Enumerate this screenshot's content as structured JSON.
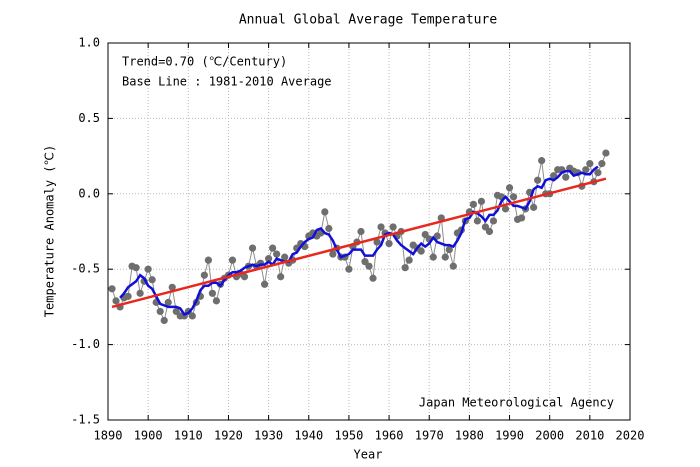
{
  "chart_data": {
    "type": "line",
    "title": "Annual Global Average Temperature",
    "x_label": "Year",
    "y_label": "Temperature Anomaly (℃)",
    "annotations": [
      "Trend=0.70 (℃/Century)",
      "Base Line : 1981-2010 Average",
      "Japan Meteorological Agency"
    ],
    "xlim": [
      1890,
      2020
    ],
    "ylim": [
      -1.5,
      1.0
    ],
    "xticks": [
      1890,
      1900,
      1910,
      1920,
      1930,
      1940,
      1950,
      1960,
      1970,
      1980,
      1990,
      2000,
      2010,
      2020
    ],
    "yticks": [
      {
        "value": 1,
        "label": "1.0"
      },
      0.5,
      {
        "value": 0,
        "label": "0.0"
      },
      -0.5,
      {
        "value": -1,
        "label": "-1.0"
      },
      -1.5
    ],
    "grid": true,
    "x": [
      1891,
      1892,
      1893,
      1894,
      1895,
      1896,
      1897,
      1898,
      1899,
      1900,
      1901,
      1902,
      1903,
      1904,
      1905,
      1906,
      1907,
      1908,
      1909,
      1910,
      1911,
      1912,
      1913,
      1914,
      1915,
      1916,
      1917,
      1918,
      1919,
      1920,
      1921,
      1922,
      1923,
      1924,
      1925,
      1926,
      1927,
      1928,
      1929,
      1930,
      1931,
      1932,
      1933,
      1934,
      1935,
      1936,
      1937,
      1938,
      1939,
      1940,
      1941,
      1942,
      1943,
      1944,
      1945,
      1946,
      1947,
      1948,
      1949,
      1950,
      1951,
      1952,
      1953,
      1954,
      1955,
      1956,
      1957,
      1958,
      1959,
      1960,
      1961,
      1962,
      1963,
      1964,
      1965,
      1966,
      1967,
      1968,
      1969,
      1970,
      1971,
      1972,
      1973,
      1974,
      1975,
      1976,
      1977,
      1978,
      1979,
      1980,
      1981,
      1982,
      1983,
      1984,
      1985,
      1986,
      1987,
      1988,
      1989,
      1990,
      1991,
      1992,
      1993,
      1994,
      1995,
      1996,
      1997,
      1998,
      1999,
      2000,
      2001,
      2002,
      2003,
      2004,
      2005,
      2006,
      2007,
      2008,
      2009,
      2010,
      2011,
      2012,
      2013,
      2014
    ],
    "series": [
      {
        "color": "#6e6e6e",
        "line_color": "#8c8c8c",
        "markers": true,
        "values": [
          -0.63,
          -0.71,
          -0.75,
          -0.69,
          -0.68,
          -0.48,
          -0.49,
          -0.66,
          -0.58,
          -0.5,
          -0.57,
          -0.72,
          -0.78,
          -0.84,
          -0.72,
          -0.62,
          -0.78,
          -0.81,
          -0.81,
          -0.78,
          -0.81,
          -0.72,
          -0.68,
          -0.54,
          -0.44,
          -0.66,
          -0.71,
          -0.6,
          -0.56,
          -0.54,
          -0.44,
          -0.55,
          -0.53,
          -0.55,
          -0.48,
          -0.36,
          -0.48,
          -0.46,
          -0.6,
          -0.43,
          -0.36,
          -0.4,
          -0.55,
          -0.42,
          -0.46,
          -0.44,
          -0.36,
          -0.33,
          -0.35,
          -0.28,
          -0.26,
          -0.28,
          -0.26,
          -0.12,
          -0.23,
          -0.4,
          -0.36,
          -0.42,
          -0.42,
          -0.5,
          -0.35,
          -0.32,
          -0.25,
          -0.45,
          -0.48,
          -0.56,
          -0.32,
          -0.22,
          -0.26,
          -0.33,
          -0.22,
          -0.28,
          -0.25,
          -0.49,
          -0.44,
          -0.34,
          -0.36,
          -0.38,
          -0.27,
          -0.3,
          -0.42,
          -0.28,
          -0.16,
          -0.42,
          -0.37,
          -0.48,
          -0.26,
          -0.24,
          -0.18,
          -0.12,
          -0.07,
          -0.18,
          -0.05,
          -0.22,
          -0.25,
          -0.18,
          -0.01,
          -0.02,
          -0.1,
          0.04,
          -0.02,
          -0.17,
          -0.16,
          -0.1,
          0.01,
          -0.09,
          0.09,
          0.22,
          0.0,
          0.0,
          0.12,
          0.16,
          0.16,
          0.11,
          0.17,
          0.15,
          0.14,
          0.05,
          0.16,
          0.2,
          0.08,
          0.14,
          0.2,
          0.27
        ]
      },
      {
        "color": "#1010d8",
        "markers": false,
        "values": [
          null,
          null,
          -0.69,
          -0.66,
          -0.62,
          -0.6,
          -0.58,
          -0.54,
          -0.56,
          -0.61,
          -0.63,
          -0.68,
          -0.73,
          -0.74,
          -0.75,
          -0.75,
          -0.75,
          -0.76,
          -0.8,
          -0.79,
          -0.76,
          -0.71,
          -0.64,
          -0.61,
          -0.61,
          -0.59,
          -0.59,
          -0.61,
          -0.57,
          -0.54,
          -0.52,
          -0.52,
          -0.51,
          -0.49,
          -0.48,
          -0.47,
          -0.48,
          -0.47,
          -0.47,
          -0.45,
          -0.47,
          -0.43,
          -0.44,
          -0.45,
          -0.45,
          -0.4,
          -0.39,
          -0.35,
          -0.32,
          -0.3,
          -0.29,
          -0.24,
          -0.23,
          -0.26,
          -0.27,
          -0.31,
          -0.37,
          -0.42,
          -0.41,
          -0.4,
          -0.37,
          -0.37,
          -0.37,
          -0.41,
          -0.41,
          -0.41,
          -0.37,
          -0.34,
          -0.27,
          -0.26,
          -0.27,
          -0.31,
          -0.34,
          -0.36,
          -0.38,
          -0.4,
          -0.36,
          -0.33,
          -0.35,
          -0.33,
          -0.29,
          -0.32,
          -0.33,
          -0.34,
          -0.34,
          -0.35,
          -0.31,
          -0.26,
          -0.17,
          -0.16,
          -0.12,
          -0.13,
          -0.15,
          -0.18,
          -0.14,
          -0.14,
          -0.11,
          -0.05,
          -0.02,
          -0.05,
          -0.08,
          -0.08,
          -0.09,
          -0.1,
          -0.05,
          0.03,
          0.05,
          0.04,
          0.09,
          0.1,
          0.09,
          0.11,
          0.14,
          0.15,
          0.15,
          0.12,
          0.13,
          0.14,
          0.13,
          0.13,
          0.16,
          0.18,
          null,
          null
        ]
      },
      {
        "color": "#e8281e",
        "markers": false,
        "x": [
          1891,
          2014
        ],
        "values": [
          -0.75,
          0.1
        ]
      }
    ]
  }
}
